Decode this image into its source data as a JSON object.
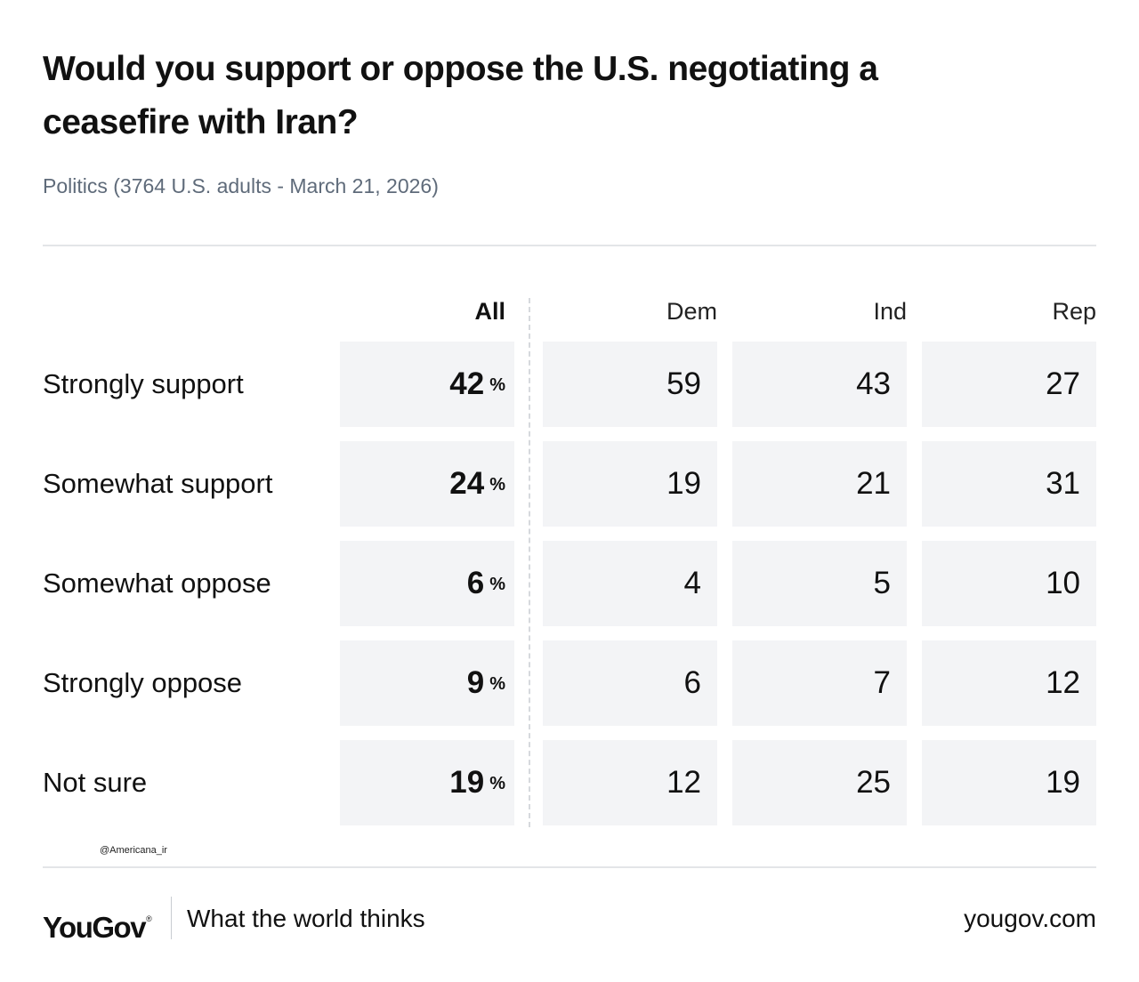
{
  "title": "Would you support or oppose the U.S. negotiating a ceasefire with Iran?",
  "subtitle": "Politics (3764 U.S. adults - March 21, 2026)",
  "watermark": "@Americana_ir",
  "footer": {
    "logo": "YouGov",
    "logo_mark": "®",
    "tagline": "What the world thinks",
    "site": "yougov.com"
  },
  "chart_data": {
    "type": "table",
    "title": "Would you support or oppose the U.S. negotiating a ceasefire with Iran?",
    "subtitle": "Politics (3764 U.S. adults - March 21, 2026)",
    "columns": [
      "All",
      "Dem",
      "Ind",
      "Rep"
    ],
    "unit_symbol": "%",
    "rows": [
      {
        "label": "Strongly support",
        "values": [
          42,
          59,
          43,
          27
        ]
      },
      {
        "label": "Somewhat support",
        "values": [
          24,
          19,
          21,
          31
        ]
      },
      {
        "label": "Somewhat oppose",
        "values": [
          6,
          4,
          5,
          10
        ]
      },
      {
        "label": "Strongly oppose",
        "values": [
          9,
          6,
          7,
          12
        ]
      },
      {
        "label": "Not sure",
        "values": [
          19,
          12,
          25,
          19
        ]
      }
    ]
  },
  "colors": {
    "cell_bg": "#f3f4f6",
    "text": "#111111",
    "subtitle": "#5f6b7a",
    "rule": "#e3e5e8"
  }
}
